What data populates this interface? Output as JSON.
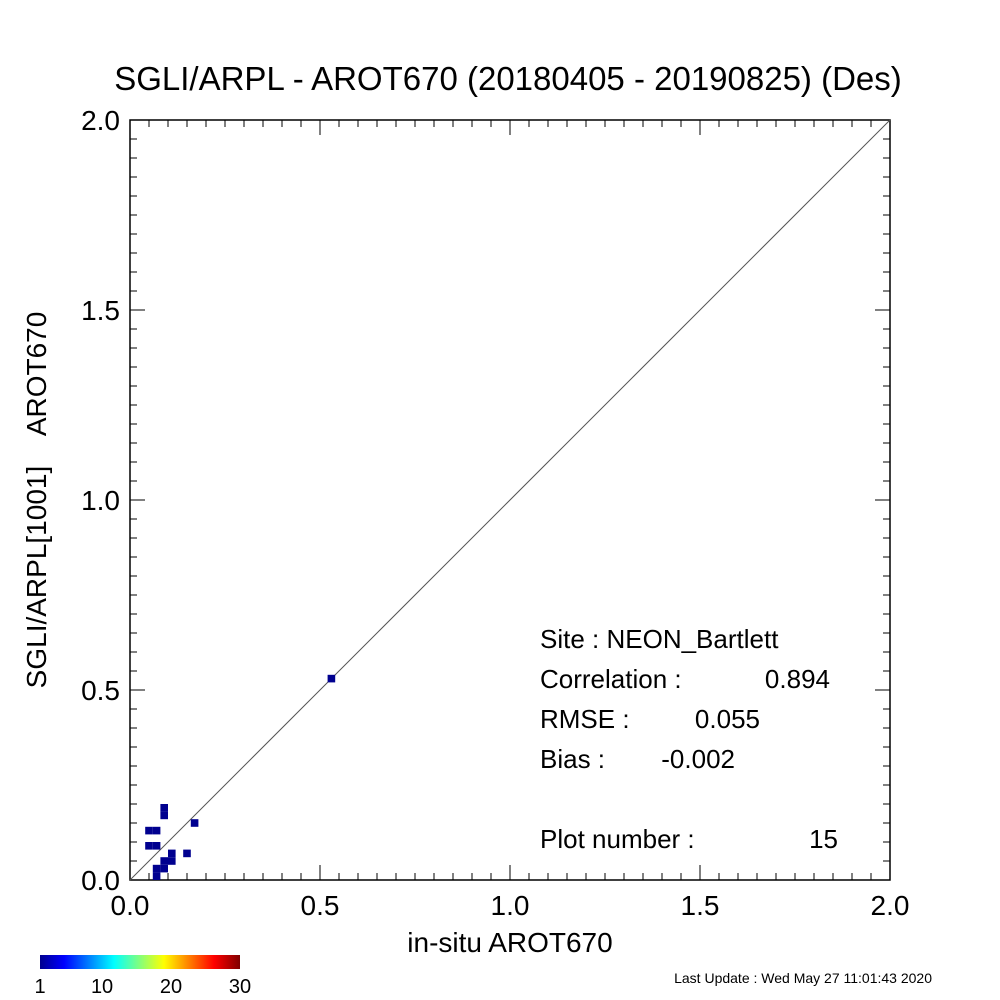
{
  "chart_data": {
    "type": "heatmap",
    "title": "SGLI/ARPL - AROT670 (20180405 - 20190825) (Des)",
    "xlabel": "in-situ AROT670",
    "ylabel": "SGLI/ARPL[1001]    AROT670",
    "xlim": [
      0.0,
      2.0
    ],
    "ylim": [
      0.0,
      2.0
    ],
    "x_ticks": [
      "0.0",
      "0.5",
      "1.0",
      "1.5",
      "2.0"
    ],
    "y_ticks": [
      "0.0",
      "0.5",
      "1.0",
      "1.5",
      "2.0"
    ],
    "reference_line": "1:1",
    "bin_size": 0.02,
    "cells": [
      {
        "x": 0.53,
        "y": 0.53,
        "count": 1
      },
      {
        "x": 0.09,
        "y": 0.19,
        "count": 1
      },
      {
        "x": 0.09,
        "y": 0.17,
        "count": 1
      },
      {
        "x": 0.17,
        "y": 0.15,
        "count": 1
      },
      {
        "x": 0.05,
        "y": 0.13,
        "count": 1
      },
      {
        "x": 0.07,
        "y": 0.13,
        "count": 1
      },
      {
        "x": 0.05,
        "y": 0.09,
        "count": 1
      },
      {
        "x": 0.07,
        "y": 0.09,
        "count": 1
      },
      {
        "x": 0.11,
        "y": 0.07,
        "count": 1
      },
      {
        "x": 0.15,
        "y": 0.07,
        "count": 1
      },
      {
        "x": 0.09,
        "y": 0.05,
        "count": 1
      },
      {
        "x": 0.11,
        "y": 0.05,
        "count": 1
      },
      {
        "x": 0.07,
        "y": 0.03,
        "count": 1
      },
      {
        "x": 0.09,
        "y": 0.03,
        "count": 1
      },
      {
        "x": 0.07,
        "y": 0.01,
        "count": 1
      }
    ],
    "stats": {
      "site": "Site : NEON_Bartlett",
      "correlation_label": "Correlation :",
      "correlation": "0.894",
      "rmse_label": "RMSE :",
      "rmse": "0.055",
      "bias_label": "Bias :",
      "bias": "-0.002",
      "plot_number_label": "Plot number :",
      "plot_number": "15"
    },
    "colorbar": {
      "range": [
        1,
        30
      ],
      "ticks": [
        "1",
        "10",
        "20",
        "30"
      ],
      "colors": [
        "#00008f",
        "#0000ff",
        "#00ffff",
        "#ffff00",
        "#ff0000",
        "#800000"
      ]
    },
    "cell_color": "#00008f"
  },
  "footer": {
    "last_update": "Last Update : Wed May 27 11:01:43 2020"
  }
}
